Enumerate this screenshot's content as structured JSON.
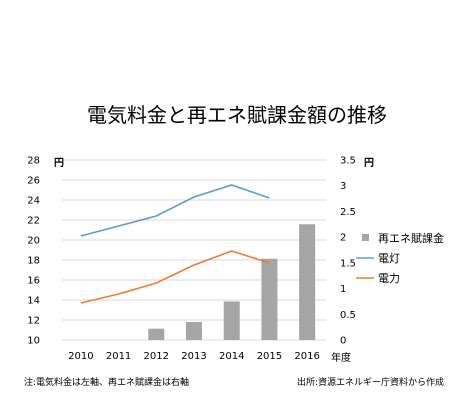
{
  "chart_data": {
    "type": "bar+line",
    "title": "電気料金と再エネ賦課金額の推移",
    "categories": [
      "2010",
      "2011",
      "2012",
      "2013",
      "2014",
      "2015",
      "2016"
    ],
    "xlabel": "年度",
    "left_axis": {
      "unit": "円",
      "ylim": [
        10,
        28
      ],
      "ticks": [
        10,
        12,
        14,
        16,
        18,
        20,
        22,
        24,
        26,
        28
      ]
    },
    "right_axis": {
      "unit": "円",
      "ylim": [
        0,
        3.5
      ],
      "ticks": [
        "0",
        "0.5",
        "1",
        "1.5",
        "2",
        "2.5",
        "3",
        "3.5"
      ]
    },
    "series": [
      {
        "name": "再エネ賦課金",
        "kind": "bar",
        "axis": "right",
        "color": "#a5a5a5",
        "values": [
          null,
          null,
          0.22,
          0.35,
          0.75,
          1.58,
          2.25
        ]
      },
      {
        "name": "電灯",
        "kind": "line",
        "axis": "left",
        "color": "#5b9bd5",
        "values": [
          20.4,
          21.4,
          22.4,
          24.3,
          25.5,
          24.2,
          null
        ]
      },
      {
        "name": "電力",
        "kind": "line",
        "axis": "left",
        "color": "#ed7d31",
        "values": [
          13.7,
          14.6,
          15.7,
          17.5,
          18.9,
          17.7,
          null
        ]
      }
    ],
    "legend_position": "right",
    "grid": "horizontal"
  },
  "notes": {
    "left": "注:電気料金は左軸、再エネ賦課金は右軸",
    "right": "出所:資源エネルギー庁資料から作成"
  }
}
